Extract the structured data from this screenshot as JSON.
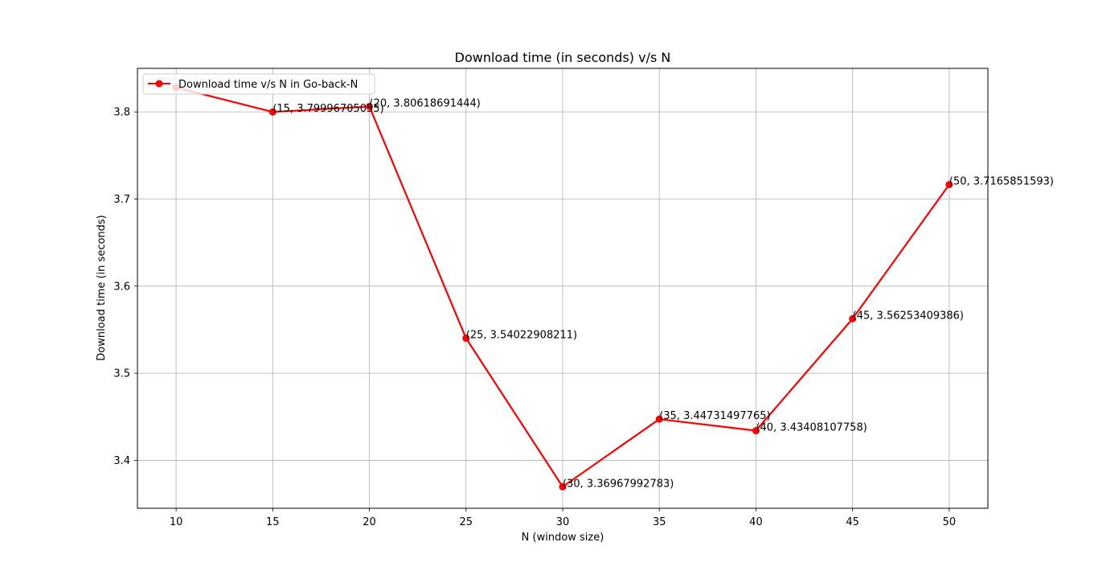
{
  "chart_data": {
    "type": "line",
    "title": "Download time (in seconds) v/s N",
    "xlabel": "N (window size)",
    "ylabel": "Download time (in seconds)",
    "xlim": [
      8,
      52
    ],
    "ylim": [
      3.345,
      3.85
    ],
    "xticks": [
      10,
      15,
      20,
      25,
      30,
      35,
      40,
      45,
      50
    ],
    "yticks": [
      3.4,
      3.5,
      3.6,
      3.7,
      3.8
    ],
    "ytick_labels": [
      "3.4",
      "3.5",
      "3.6",
      "3.7",
      "3.8"
    ],
    "grid": true,
    "legend_position": "upper-left",
    "color": "#ff0000",
    "series": [
      {
        "name": "Download time v/s N in Go-back-N",
        "x": [
          10,
          15,
          20,
          25,
          30,
          35,
          40,
          45,
          50
        ],
        "y": [
          3.828,
          3.79996705055,
          3.80618691444,
          3.54022908211,
          3.36967992783,
          3.44731497765,
          3.43408107758,
          3.56253409386,
          3.7165851593
        ],
        "point_labels": [
          "",
          "(15, 3.79996705055)",
          "(20, 3.80618691444)",
          "(25, 3.54022908211)",
          "(30, 3.36967992783)",
          "(35, 3.44731497765)",
          "(40, 3.43408107758)",
          "(45, 3.56253409386)",
          "(50, 3.7165851593)"
        ]
      }
    ]
  }
}
